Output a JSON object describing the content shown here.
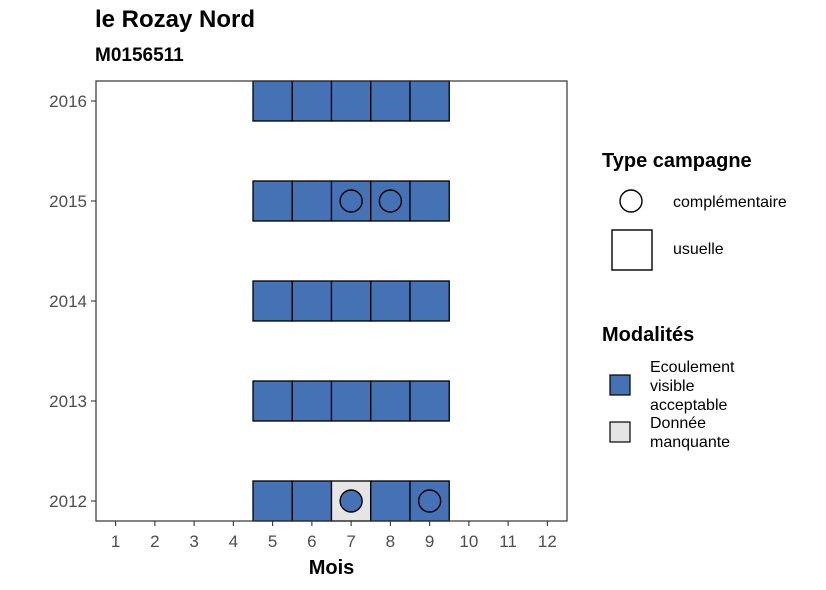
{
  "title": "le Rozay Nord",
  "subtitle": "M0156511",
  "chart_data": {
    "type": "heatmap",
    "title": "le Rozay Nord",
    "subtitle": "M0156511",
    "xlabel": "Mois",
    "ylabel": "",
    "x_ticks": [
      1,
      2,
      3,
      4,
      5,
      6,
      7,
      8,
      9,
      10,
      11,
      12
    ],
    "y_ticks": [
      2012,
      2013,
      2014,
      2015,
      2016
    ],
    "xlim": [
      0.5,
      12.5
    ],
    "ylim": [
      2011.8,
      2016.2
    ],
    "grid": false,
    "legend_position": "right",
    "colors": {
      "Ecoulement visible acceptable": "#4472B4",
      "Donnée manquante": "#E5E5E5"
    },
    "cells": [
      {
        "year": 2016,
        "month": 5,
        "modalite": "Ecoulement visible acceptable",
        "type": "usuelle"
      },
      {
        "year": 2016,
        "month": 6,
        "modalite": "Ecoulement visible acceptable",
        "type": "usuelle"
      },
      {
        "year": 2016,
        "month": 7,
        "modalite": "Ecoulement visible acceptable",
        "type": "usuelle"
      },
      {
        "year": 2016,
        "month": 8,
        "modalite": "Ecoulement visible acceptable",
        "type": "usuelle"
      },
      {
        "year": 2016,
        "month": 9,
        "modalite": "Ecoulement visible acceptable",
        "type": "usuelle"
      },
      {
        "year": 2015,
        "month": 5,
        "modalite": "Ecoulement visible acceptable",
        "type": "usuelle"
      },
      {
        "year": 2015,
        "month": 6,
        "modalite": "Ecoulement visible acceptable",
        "type": "usuelle"
      },
      {
        "year": 2015,
        "month": 7,
        "modalite": "Ecoulement visible acceptable",
        "type": "usuelle"
      },
      {
        "year": 2015,
        "month": 8,
        "modalite": "Ecoulement visible acceptable",
        "type": "usuelle"
      },
      {
        "year": 2015,
        "month": 9,
        "modalite": "Ecoulement visible acceptable",
        "type": "usuelle"
      },
      {
        "year": 2015,
        "month": 7,
        "modalite": "Ecoulement visible acceptable",
        "type": "complémentaire"
      },
      {
        "year": 2015,
        "month": 8,
        "modalite": "Ecoulement visible acceptable",
        "type": "complémentaire"
      },
      {
        "year": 2014,
        "month": 5,
        "modalite": "Ecoulement visible acceptable",
        "type": "usuelle"
      },
      {
        "year": 2014,
        "month": 6,
        "modalite": "Ecoulement visible acceptable",
        "type": "usuelle"
      },
      {
        "year": 2014,
        "month": 7,
        "modalite": "Ecoulement visible acceptable",
        "type": "usuelle"
      },
      {
        "year": 2014,
        "month": 8,
        "modalite": "Ecoulement visible acceptable",
        "type": "usuelle"
      },
      {
        "year": 2014,
        "month": 9,
        "modalite": "Ecoulement visible acceptable",
        "type": "usuelle"
      },
      {
        "year": 2013,
        "month": 5,
        "modalite": "Ecoulement visible acceptable",
        "type": "usuelle"
      },
      {
        "year": 2013,
        "month": 6,
        "modalite": "Ecoulement visible acceptable",
        "type": "usuelle"
      },
      {
        "year": 2013,
        "month": 7,
        "modalite": "Ecoulement visible acceptable",
        "type": "usuelle"
      },
      {
        "year": 2013,
        "month": 8,
        "modalite": "Ecoulement visible acceptable",
        "type": "usuelle"
      },
      {
        "year": 2013,
        "month": 9,
        "modalite": "Ecoulement visible acceptable",
        "type": "usuelle"
      },
      {
        "year": 2012,
        "month": 5,
        "modalite": "Ecoulement visible acceptable",
        "type": "usuelle"
      },
      {
        "year": 2012,
        "month": 6,
        "modalite": "Ecoulement visible acceptable",
        "type": "usuelle"
      },
      {
        "year": 2012,
        "month": 7,
        "modalite": "Donnée manquante",
        "type": "usuelle"
      },
      {
        "year": 2012,
        "month": 8,
        "modalite": "Ecoulement visible acceptable",
        "type": "usuelle"
      },
      {
        "year": 2012,
        "month": 9,
        "modalite": "Ecoulement visible acceptable",
        "type": "usuelle"
      },
      {
        "year": 2012,
        "month": 7,
        "modalite": "Ecoulement visible acceptable",
        "type": "complémentaire"
      },
      {
        "year": 2012,
        "month": 9,
        "modalite": "Ecoulement visible acceptable",
        "type": "complémentaire"
      }
    ],
    "legend": {
      "shape_title": "Type campagne",
      "shape_entries": [
        "complémentaire",
        "usuelle"
      ],
      "fill_title": "Modalités",
      "fill_entries": [
        "Ecoulement visible acceptable",
        "Donnée manquante"
      ]
    }
  },
  "legend_text": {
    "type_title": "Type campagne",
    "type_complementaire": "complémentaire",
    "type_usuelle": "usuelle",
    "modalites_title": "Modalités",
    "mod_ecoulement_lines": [
      "Ecoulement",
      "visible",
      "acceptable"
    ],
    "mod_manquante_lines": [
      "Donnée",
      "manquante"
    ]
  }
}
